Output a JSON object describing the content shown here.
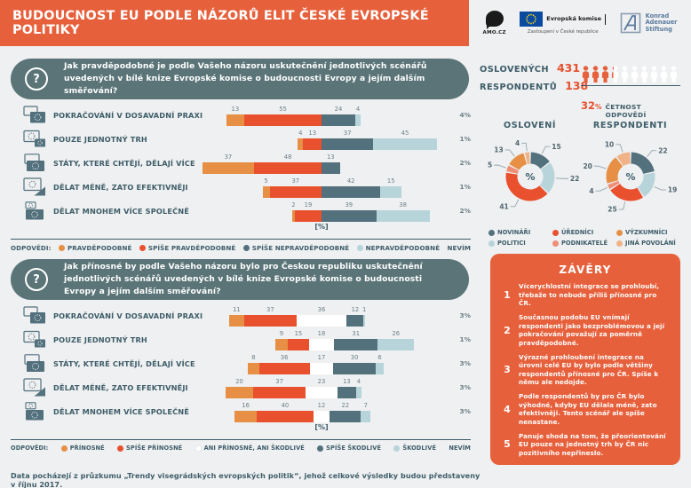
{
  "header": {
    "title": "BUDOUCNOST EU PODLE NÁZORŮ ELIT ČESKÉ EVROPSKÉ POLITIKY"
  },
  "logos": {
    "amo": "AMO.CZ",
    "eu_name": "Evropská komise",
    "eu_sub": "Zastoupení v České republice",
    "kas_line1": "Konrad",
    "kas_line2": "Adenauer",
    "kas_line3": "Stiftung"
  },
  "stats": {
    "contacted_label": "OSLOVENÝCH",
    "contacted_value": "431",
    "respondents_label": "RESPONDENTŮ",
    "respondents_value": "138",
    "rate_value": "32",
    "rate_unit": "%",
    "rate_label": "ČETNOST ODPOVĚDÍ",
    "persons_total": 10,
    "persons_filled": 3.2
  },
  "questions": {
    "q1": "Jak pravděpodobné je podle Vašeho názoru uskutečnění jednotlivých scénářů uvedených v bílé knize Evropské komise o budoucnosti Evropy a jejím dalším směřování?",
    "q2": "Jak přínosné by podle Vašeho názoru bylo pro Českou republiku uskutečnění jednotlivých scénářů uvedených v bílé knize Evropské komise o budoucnosti Evropy a jejím dalším směřování?"
  },
  "answers_label": "ODPOVĚDI:",
  "nevim_label": "NEVÍM",
  "question_mark": "?",
  "colors": {
    "accent_orange": "#e7603c",
    "accent_red": "#e8502e",
    "teal_box": "#5a7477",
    "text_dark": "#3e5d69",
    "seg_orange": "#e68f45",
    "seg_red": "#e8502e",
    "seg_dark": "#53707d",
    "seg_light": "#b7d4da",
    "seg_white": "#ffffff",
    "pink": "#ef8d77",
    "peach": "#f1b287"
  },
  "chart_data": [
    {
      "id": "probability",
      "type": "bar",
      "diverging": true,
      "title": "Jak pravděpodobné je podle Vašeho názoru uskutečnění jednotlivých scénářů uvedených v bílé knize Evropské komise o budoucnosti Evropy a jejím dalším směřování?",
      "categories": [
        "POKRAČOVÁNÍ V DOSAVADNÍ PRAXI",
        "POUZE JEDNOTNÝ TRH",
        "STÁTY, KTERÉ CHTĚJÍ, DĚLAJÍ VÍCE",
        "DĚLAT MÉNĚ, ZATO EFEKTIVNĚJI",
        "DĚLAT MNOHEM VÍCE SPOLEČNĚ"
      ],
      "series": [
        {
          "name": "PRAVDĚPODOBNÉ",
          "color": "#e68f45",
          "values": [
            13,
            4,
            37,
            5,
            2
          ]
        },
        {
          "name": "SPÍŠE PRAVDĚPODOBNÉ",
          "color": "#e8502e",
          "values": [
            55,
            13,
            48,
            37,
            19
          ]
        },
        {
          "name": "SPÍŠE NEPRAVDĚPODOBNÉ",
          "color": "#53707d",
          "values": [
            24,
            37,
            13,
            42,
            39
          ]
        },
        {
          "name": "NEPRAVDĚPODOBNÉ",
          "color": "#b7d4da",
          "values": [
            4,
            45,
            0,
            15,
            38
          ]
        },
        {
          "name": "NEVÍM",
          "color": null,
          "values": [
            4,
            1,
            2,
            1,
            2
          ]
        }
      ],
      "neg_series": 2,
      "center_series": null,
      "xlabel": "[%]"
    },
    {
      "id": "benefit",
      "type": "bar",
      "diverging": true,
      "title": "Jak přínosné by podle Vašeho názoru bylo pro Českou republiku uskutečnění jednotlivých scénářů uvedených v bílé knize Evropské komise o budoucnosti Evropy a jejím dalším směřování?",
      "categories": [
        "POKRAČOVÁNÍ V DOSAVADNÍ PRAXI",
        "POUZE JEDNOTNÝ TRH",
        "STÁTY, KTERÉ CHTĚJÍ, DĚLAJÍ VÍCE",
        "DĚLAT MÉNĚ, ZATO EFEKTIVNĚJI",
        "DĚLAT MNOHEM VÍCE SPOLEČNĚ"
      ],
      "series": [
        {
          "name": "PŘÍNOSNÉ",
          "color": "#e68f45",
          "values": [
            11,
            9,
            8,
            20,
            16
          ]
        },
        {
          "name": "SPÍŠE PŘÍNOSNÉ",
          "color": "#e8502e",
          "values": [
            37,
            15,
            36,
            37,
            40
          ]
        },
        {
          "name": "ANI PŘÍNOSNÉ, ANI ŠKODLIVÉ",
          "color": "#ffffff",
          "values": [
            36,
            18,
            17,
            23,
            12
          ]
        },
        {
          "name": "SPÍŠE ŠKODLIVÉ",
          "color": "#53707d",
          "values": [
            12,
            31,
            30,
            13,
            22
          ]
        },
        {
          "name": "ŠKODLIVÉ",
          "color": "#b7d4da",
          "values": [
            1,
            26,
            6,
            4,
            7
          ]
        },
        {
          "name": "NEVÍM",
          "color": null,
          "values": [
            3,
            1,
            3,
            3,
            3
          ]
        }
      ],
      "neg_series": 2,
      "center_series": 2,
      "xlabel": "[%]"
    },
    {
      "id": "osloveni",
      "type": "pie",
      "title": "OSLOVENÍ",
      "labels": [
        "NOVINÁŘI",
        "POLITICI",
        "ÚŘEDNÍCI",
        "PODNIKATELÉ",
        "VÝZKUMNÍCI",
        "JINÁ POVOLÁNÍ"
      ],
      "values": [
        15,
        22,
        41,
        5,
        13,
        4
      ],
      "colors": [
        "#53707d",
        "#b7d4da",
        "#e8502e",
        "#ef8d77",
        "#e68f45",
        "#f1b287"
      ],
      "center_label": "%"
    },
    {
      "id": "respondenti",
      "type": "pie",
      "title": "RESPONDENTI",
      "labels": [
        "NOVINÁŘI",
        "POLITICI",
        "ÚŘEDNÍCI",
        "PODNIKATELÉ",
        "VÝZKUMNÍCI",
        "JINÁ POVOLÁNÍ"
      ],
      "values": [
        22,
        19,
        25,
        4,
        20,
        10
      ],
      "colors": [
        "#53707d",
        "#b7d4da",
        "#e8502e",
        "#ef8d77",
        "#e68f45",
        "#f1b287"
      ],
      "center_label": "%"
    }
  ],
  "zavery": {
    "title": "ZÁVĚRY",
    "items": [
      "Vícerychlostní integrace se prohloubí, třebaže to nebude příliš přínosné pro ČR.",
      "Současnou podobu EU vnímají respondenti jako bezproblémovou a její pokračování považují za poměrně pravděpodobné.",
      "Výrazné prohloubení integrace na úrovni celé EU by bylo podle většiny respondentů přínosné pro ČR. Spíše k němu ale nedojde.",
      "Podle respondentů by pro ČR bylo výhodné, kdyby EU dělala méně, zato efektivněji. Tento scénář ale spíše nenastane.",
      "Panuje shoda na tom, že přeorientování EU pouze na jednotný trh by ČR nic pozitivního nepřineslo."
    ]
  },
  "footer": {
    "text": "Data pocházejí z průzkumu „Trendy visegrádských evropských politik“, jehož celkové výsledky budou představeny v říjnu 2017."
  }
}
